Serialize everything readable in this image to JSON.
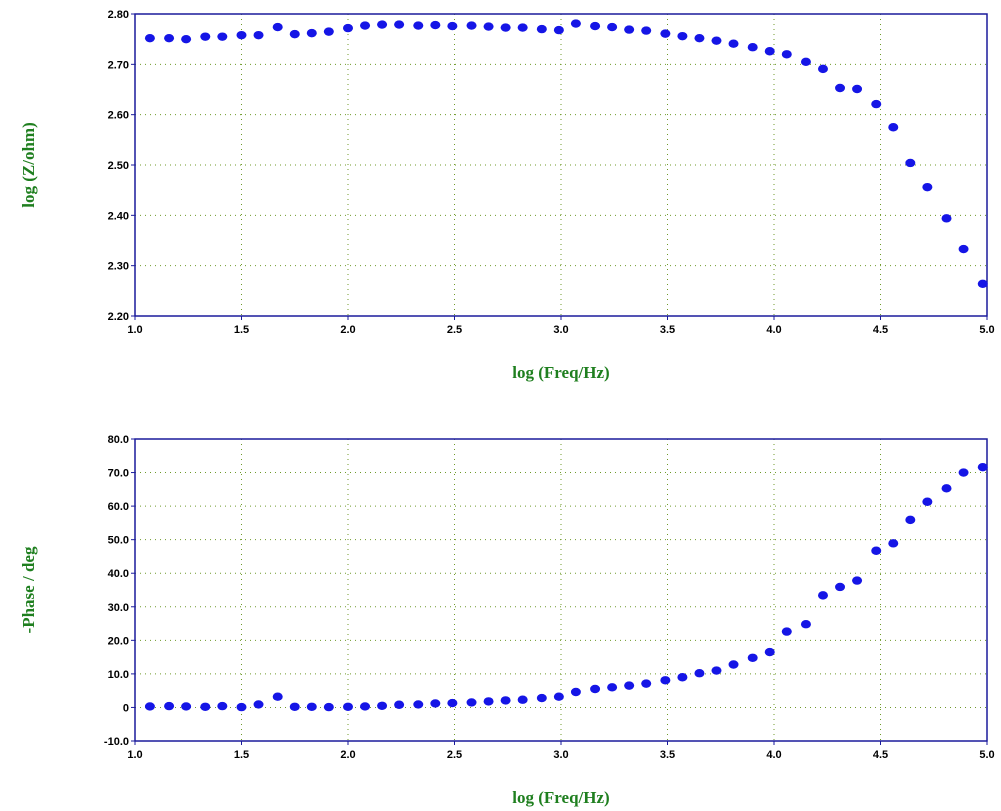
{
  "colors": {
    "points": "#1515e6",
    "axis_label": "#1f7f1f",
    "frame": "#1a1a9c",
    "grid": "#6f9a2a"
  },
  "chart_data": [
    {
      "type": "scatter",
      "title": "",
      "xlabel": "log (Freq/Hz)",
      "ylabel": "log (Z/ohm)",
      "xlim": [
        1.0,
        5.0
      ],
      "ylim": [
        2.2,
        2.8
      ],
      "xticks": [
        "1.0",
        "1.5",
        "2.0",
        "2.5",
        "3.0",
        "3.5",
        "4.0",
        "4.5",
        "5.0"
      ],
      "yticks": [
        "2.20",
        "2.30",
        "2.40",
        "2.50",
        "2.60",
        "2.70",
        "2.80"
      ],
      "grid": true,
      "x": [
        1.07,
        1.16,
        1.24,
        1.33,
        1.41,
        1.5,
        1.58,
        1.67,
        1.75,
        1.83,
        1.91,
        2.0,
        2.08,
        2.16,
        2.24,
        2.33,
        2.41,
        2.49,
        2.58,
        2.66,
        2.74,
        2.82,
        2.91,
        2.99,
        3.07,
        3.16,
        3.24,
        3.32,
        3.4,
        3.49,
        3.57,
        3.65,
        3.73,
        3.81,
        3.9,
        3.98,
        4.06,
        4.15,
        4.23,
        4.31,
        4.39,
        4.48,
        4.56,
        4.64,
        4.72,
        4.81,
        4.89,
        4.98
      ],
      "y": [
        2.752,
        2.752,
        2.75,
        2.755,
        2.755,
        2.758,
        2.758,
        2.774,
        2.76,
        2.762,
        2.765,
        2.772,
        2.777,
        2.779,
        2.779,
        2.777,
        2.778,
        2.776,
        2.777,
        2.775,
        2.773,
        2.773,
        2.77,
        2.768,
        2.781,
        2.776,
        2.774,
        2.769,
        2.767,
        2.761,
        2.756,
        2.752,
        2.747,
        2.741,
        2.734,
        2.726,
        2.72,
        2.705,
        2.691,
        2.653,
        2.651,
        2.621,
        2.575,
        2.504,
        2.456,
        2.394,
        2.333,
        2.264
      ]
    },
    {
      "type": "scatter",
      "title": "",
      "xlabel": "log (Freq/Hz)",
      "ylabel": "-Phase / deg",
      "xlim": [
        1.0,
        5.0
      ],
      "ylim": [
        -10.0,
        80.0
      ],
      "xticks": [
        "1.0",
        "1.5",
        "2.0",
        "2.5",
        "3.0",
        "3.5",
        "4.0",
        "4.5",
        "5.0"
      ],
      "yticks": [
        "-10.0",
        "0",
        "10.0",
        "20.0",
        "30.0",
        "40.0",
        "50.0",
        "60.0",
        "70.0",
        "80.0"
      ],
      "grid": true,
      "x": [
        1.07,
        1.16,
        1.24,
        1.33,
        1.41,
        1.5,
        1.58,
        1.67,
        1.75,
        1.83,
        1.91,
        2.0,
        2.08,
        2.16,
        2.24,
        2.33,
        2.41,
        2.49,
        2.58,
        2.66,
        2.74,
        2.82,
        2.91,
        2.99,
        3.07,
        3.16,
        3.24,
        3.32,
        3.4,
        3.49,
        3.57,
        3.65,
        3.73,
        3.81,
        3.9,
        3.98,
        4.06,
        4.15,
        4.23,
        4.31,
        4.39,
        4.48,
        4.56,
        4.64,
        4.72,
        4.81,
        4.89,
        4.98
      ],
      "y": [
        0.3,
        0.4,
        0.3,
        0.2,
        0.4,
        0.1,
        0.9,
        3.2,
        0.2,
        0.2,
        0.1,
        0.2,
        0.3,
        0.5,
        0.8,
        0.9,
        1.2,
        1.3,
        1.5,
        1.8,
        2.1,
        2.3,
        2.8,
        3.2,
        4.6,
        5.5,
        6.0,
        6.5,
        7.1,
        8.1,
        9.0,
        10.2,
        11.0,
        12.8,
        14.8,
        16.5,
        22.6,
        24.8,
        33.4,
        35.9,
        37.8,
        46.7,
        48.9,
        55.9,
        61.3,
        65.3,
        70.0,
        71.6
      ]
    }
  ]
}
